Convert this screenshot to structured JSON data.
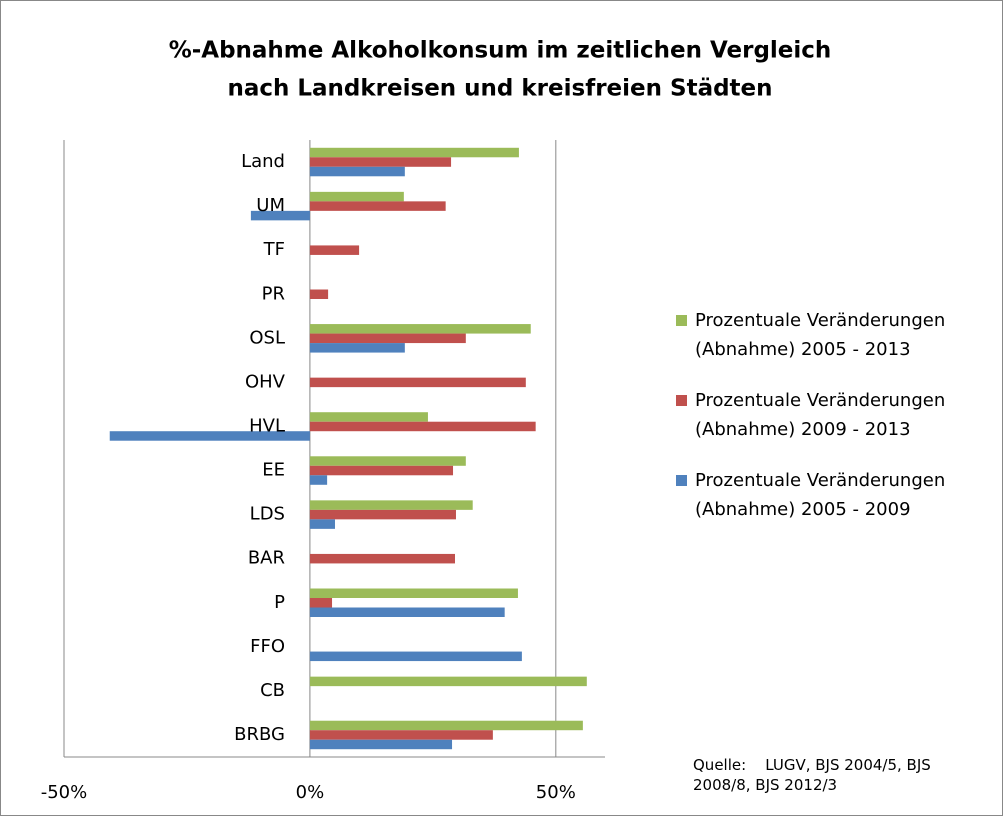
{
  "chart_data": {
    "type": "barh",
    "title": [
      "%-Abnahme Alkoholkonsum  im zeitlichen Vergleich",
      "nach Landkreisen und kreisfreien Städten"
    ],
    "categories": [
      "Land",
      "UM",
      "TF",
      "PR",
      "OSL",
      "OHV",
      "HVL",
      "EE",
      "LDS",
      "BAR",
      "P",
      "FFO",
      "CB",
      "BRBG"
    ],
    "series": [
      {
        "name": "Prozentuale Veränderungen (Abnahme) 2005 - 2013",
        "color": "#9bbb59",
        "values": [
          42.5,
          19.1,
          null,
          null,
          44.9,
          null,
          24.0,
          31.7,
          33.1,
          null,
          42.3,
          null,
          56.3,
          55.5
        ]
      },
      {
        "name": "Prozentuale Veränderungen (Abnahme) 2009 - 2013",
        "color": "#c0504d",
        "values": [
          28.7,
          27.6,
          10.0,
          3.7,
          31.7,
          43.9,
          45.9,
          29.1,
          29.7,
          29.5,
          4.5,
          null,
          null,
          37.2
        ]
      },
      {
        "name": "Prozentuale Veränderungen (Abnahme) 2005 - 2009",
        "color": "#4f81bd",
        "values": [
          19.3,
          -12.0,
          null,
          null,
          19.3,
          null,
          -40.7,
          3.5,
          5.1,
          null,
          39.6,
          43.1,
          null,
          28.9
        ]
      }
    ],
    "xlim": [
      -50,
      60
    ],
    "xticks": [
      {
        "value": -50,
        "label": "-50%"
      },
      {
        "value": 0,
        "label": "0%"
      },
      {
        "value": 50,
        "label": "50%"
      }
    ],
    "grid": true,
    "legend": "right",
    "annotation": "Quelle:    LUGV, BJS 2004/5, BJS 2008/8, BJS 2012/3"
  }
}
